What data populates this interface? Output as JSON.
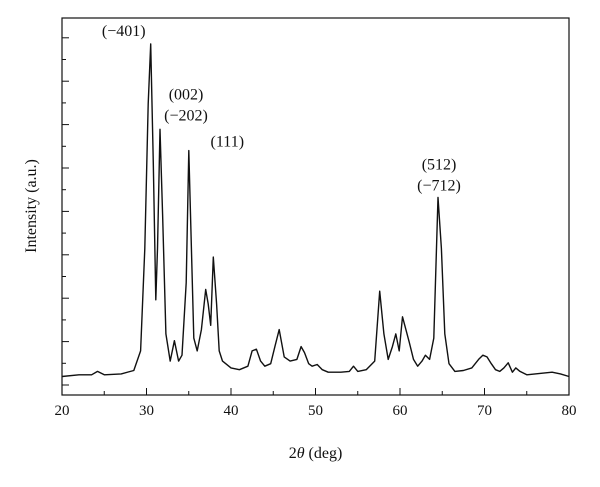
{
  "chart_data": {
    "type": "line",
    "xlabel_prefix": "2",
    "xlabel_symbol": "θ",
    "xlabel_suffix": " (deg)",
    "ylabel": "Intensity (a.u.)",
    "xlim": [
      20,
      80
    ],
    "ylim": [
      0,
      400
    ],
    "x_ticks": [
      "20",
      "30",
      "40",
      "50",
      "60",
      "70",
      "80"
    ],
    "y_ticks_labeled": false,
    "grid": false,
    "legend": "none",
    "line_color": "#111111",
    "series": [
      {
        "x": [
          20,
          22,
          23.5,
          24.2,
          25,
          27,
          28.5,
          29.3,
          29.8,
          30.2,
          30.5,
          30.8,
          31.1,
          31.3,
          31.6,
          31.9,
          32.3,
          32.8,
          33.3,
          33.8,
          34.2,
          34.7,
          35.0,
          35.3,
          35.6,
          36.0,
          36.5,
          37.0,
          37.3,
          37.6,
          37.9,
          38.3,
          38.6,
          39.0,
          40,
          41,
          42,
          42.5,
          43.0,
          43.5,
          44,
          44.7,
          45.2,
          45.7,
          46.3,
          47,
          47.8,
          48.3,
          48.7,
          49.2,
          49.6,
          50.2,
          50.8,
          51.5,
          53,
          54,
          54.5,
          55,
          56,
          57,
          57.6,
          58.1,
          58.6,
          59.1,
          59.5,
          59.9,
          60.3,
          60.7,
          61.1,
          61.6,
          62.1,
          62.6,
          63,
          63.5,
          64.0,
          64.5,
          64.9,
          65.3,
          65.8,
          66.5,
          67.5,
          68.5,
          69.3,
          69.8,
          70.3,
          70.8,
          71.3,
          71.8,
          72.3,
          72.8,
          73.3,
          73.7,
          74.2,
          75,
          76,
          77,
          78,
          79,
          80
        ],
        "y": [
          10,
          12,
          12,
          16,
          12,
          13,
          17,
          40,
          160,
          330,
          400,
          260,
          100,
          160,
          300,
          200,
          60,
          28,
          52,
          28,
          35,
          120,
          275,
          165,
          55,
          40,
          65,
          112,
          95,
          70,
          150,
          95,
          40,
          28,
          20,
          18,
          22,
          40,
          42,
          28,
          22,
          25,
          45,
          65,
          33,
          28,
          30,
          45,
          38,
          25,
          22,
          24,
          18,
          15,
          15,
          16,
          22,
          16,
          18,
          28,
          110,
          60,
          30,
          45,
          60,
          40,
          80,
          65,
          50,
          30,
          22,
          28,
          35,
          30,
          55,
          220,
          160,
          60,
          25,
          16,
          17,
          20,
          30,
          35,
          33,
          25,
          18,
          16,
          20,
          26,
          15,
          20,
          16,
          12,
          13,
          14,
          15,
          13,
          10
        ]
      }
    ],
    "annotations": [
      {
        "lines": [
          "(−401)"
        ],
        "x": 30.5,
        "y": 400
      },
      {
        "lines": [
          "(002)",
          "(−202)"
        ],
        "x": 31.6,
        "y": 300
      },
      {
        "lines": [
          "(111)"
        ],
        "x": 35.3,
        "y": 275
      },
      {
        "lines": [
          "(512)",
          "(−712)"
        ],
        "x": 64.5,
        "y": 220
      }
    ]
  }
}
